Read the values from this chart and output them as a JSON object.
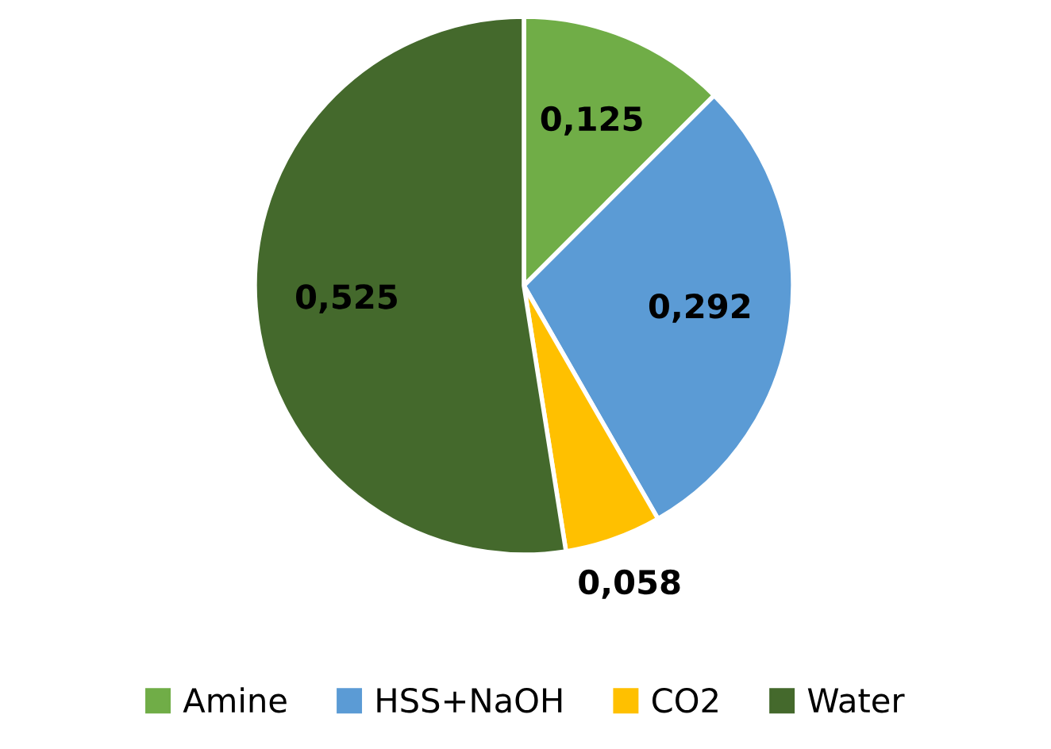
{
  "chart_data": {
    "type": "pie",
    "categories": [
      "Amine",
      "HSS+NaOH",
      "CO2",
      "Water"
    ],
    "values": [
      0.125,
      0.292,
      0.058,
      0.525
    ],
    "value_labels": [
      "0,125",
      "0,292",
      "0,058",
      "0,525"
    ],
    "colors": [
      "#70ad47",
      "#5b9bd5",
      "#ffc000",
      "#44692c"
    ],
    "legend": "bottom"
  }
}
